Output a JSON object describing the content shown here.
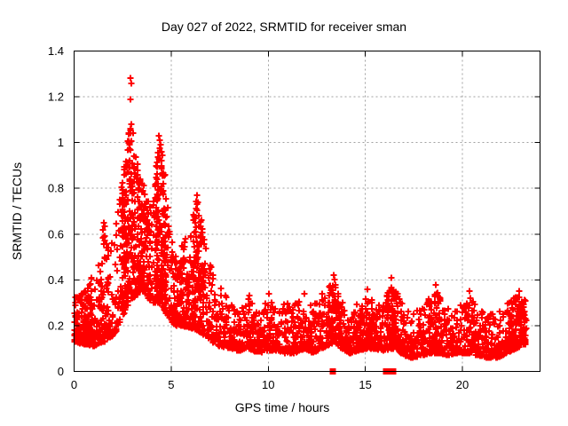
{
  "chart_data": {
    "type": "scatter",
    "title": "Day 027 of 2022, SRMTID for receiver sman",
    "xlabel": "GPS time / hours",
    "ylabel": "SRMTID / TECUs",
    "xlim": [
      0,
      24
    ],
    "ylim": [
      0,
      1.4
    ],
    "xticks": [
      {
        "value": 0,
        "label": "0"
      },
      {
        "value": 5,
        "label": "5"
      },
      {
        "value": 10,
        "label": "10"
      },
      {
        "value": 15,
        "label": "15"
      },
      {
        "value": 20,
        "label": "20"
      }
    ],
    "yticks": [
      {
        "value": 0,
        "label": "0"
      },
      {
        "value": 0.2,
        "label": "0.2"
      },
      {
        "value": 0.4,
        "label": "0.4"
      },
      {
        "value": 0.6,
        "label": "0.6"
      },
      {
        "value": 0.8,
        "label": "0.8"
      },
      {
        "value": 1,
        "label": "1"
      },
      {
        "value": 1.2,
        "label": "1.2"
      },
      {
        "value": 1.4,
        "label": "1.4"
      }
    ],
    "grid": true,
    "grid_style": "dashed",
    "legend": "none",
    "marker": {
      "shape": "plus",
      "color": "#ff0000",
      "size": 7
    },
    "grid_color": "#a0a0a0",
    "axis_color": "#000000",
    "background_color": "#ffffff",
    "series_name": "SRMTID",
    "time_range": [
      0,
      23.3
    ],
    "n_points": 2300,
    "seed": 27,
    "value_bias_exponent": 2.1,
    "envelope": [
      [
        0.0,
        0.13,
        0.33
      ],
      [
        0.5,
        0.12,
        0.36
      ],
      [
        1.0,
        0.11,
        0.42
      ],
      [
        1.3,
        0.12,
        0.52
      ],
      [
        1.6,
        0.13,
        0.66
      ],
      [
        1.9,
        0.15,
        0.55
      ],
      [
        2.2,
        0.18,
        0.68
      ],
      [
        2.5,
        0.24,
        0.85
      ],
      [
        2.8,
        0.3,
        1.05
      ],
      [
        3.0,
        0.32,
        1.08
      ],
      [
        3.2,
        0.33,
        0.92
      ],
      [
        3.5,
        0.36,
        0.84
      ],
      [
        3.8,
        0.32,
        0.74
      ],
      [
        4.1,
        0.3,
        0.82
      ],
      [
        4.35,
        0.3,
        1.0
      ],
      [
        4.6,
        0.28,
        0.95
      ],
      [
        4.9,
        0.22,
        0.64
      ],
      [
        5.2,
        0.2,
        0.52
      ],
      [
        5.6,
        0.2,
        0.56
      ],
      [
        6.0,
        0.19,
        0.64
      ],
      [
        6.35,
        0.18,
        0.76
      ],
      [
        6.7,
        0.16,
        0.6
      ],
      [
        7.1,
        0.13,
        0.47
      ],
      [
        7.5,
        0.11,
        0.38
      ],
      [
        8.1,
        0.1,
        0.32
      ],
      [
        8.5,
        0.09,
        0.26
      ],
      [
        9.0,
        0.1,
        0.32
      ],
      [
        9.5,
        0.08,
        0.26
      ],
      [
        10.0,
        0.09,
        0.33
      ],
      [
        10.4,
        0.09,
        0.27
      ],
      [
        10.9,
        0.08,
        0.3
      ],
      [
        11.4,
        0.08,
        0.31
      ],
      [
        11.9,
        0.1,
        0.34
      ],
      [
        12.3,
        0.08,
        0.3
      ],
      [
        12.8,
        0.1,
        0.34
      ],
      [
        13.4,
        0.13,
        0.4
      ],
      [
        13.8,
        0.1,
        0.32
      ],
      [
        14.2,
        0.08,
        0.26
      ],
      [
        14.7,
        0.09,
        0.31
      ],
      [
        15.1,
        0.1,
        0.33
      ],
      [
        15.5,
        0.1,
        0.31
      ],
      [
        15.9,
        0.09,
        0.3
      ],
      [
        16.3,
        0.1,
        0.38
      ],
      [
        16.6,
        0.1,
        0.36
      ],
      [
        17.0,
        0.07,
        0.3
      ],
      [
        17.4,
        0.06,
        0.25
      ],
      [
        17.9,
        0.07,
        0.28
      ],
      [
        18.4,
        0.08,
        0.34
      ],
      [
        18.8,
        0.08,
        0.36
      ],
      [
        19.3,
        0.07,
        0.27
      ],
      [
        19.8,
        0.08,
        0.28
      ],
      [
        20.3,
        0.08,
        0.34
      ],
      [
        20.8,
        0.07,
        0.28
      ],
      [
        21.3,
        0.06,
        0.25
      ],
      [
        21.8,
        0.06,
        0.27
      ],
      [
        22.3,
        0.08,
        0.3
      ],
      [
        22.8,
        0.1,
        0.34
      ],
      [
        23.1,
        0.12,
        0.35
      ],
      [
        23.3,
        0.12,
        0.3
      ]
    ],
    "extra_clusters": [
      {
        "range": [
          2.45,
          3.15
        ],
        "count": 150,
        "exponent": 1.0
      },
      {
        "range": [
          4.15,
          4.75
        ],
        "count": 130,
        "exponent": 1.0
      },
      {
        "range": [
          3.2,
          3.9
        ],
        "count": 90,
        "exponent": 1.1
      },
      {
        "range": [
          6.1,
          6.7
        ],
        "count": 90,
        "exponent": 1.1
      },
      {
        "range": [
          0.0,
          1.0
        ],
        "count": 130,
        "exponent": 2.2
      },
      {
        "range": [
          1.3,
          1.8
        ],
        "count": 40,
        "exponent": 1.6
      },
      {
        "range": [
          5.0,
          6.0
        ],
        "count": 80,
        "exponent": 1.6
      },
      {
        "range": [
          13.1,
          13.7
        ],
        "count": 50,
        "exponent": 1.4
      },
      {
        "range": [
          16.1,
          16.7
        ],
        "count": 70,
        "exponent": 1.4
      },
      {
        "range": [
          18.3,
          18.9
        ],
        "count": 40,
        "exponent": 1.6
      },
      {
        "range": [
          14.5,
          15.6
        ],
        "count": 60,
        "exponent": 1.8
      },
      {
        "range": [
          22.4,
          23.25
        ],
        "count": 70,
        "exponent": 1.6
      }
    ],
    "outliers": [
      [
        2.88,
        1.28
      ],
      [
        2.93,
        1.26
      ],
      [
        2.9,
        1.19
      ],
      [
        2.95,
        1.08
      ],
      [
        3.02,
        1.04
      ],
      [
        2.85,
        0.99
      ],
      [
        4.35,
        1.03
      ],
      [
        4.4,
        1.01
      ],
      [
        4.44,
        0.99
      ],
      [
        4.48,
        0.96
      ],
      [
        4.38,
        0.93
      ],
      [
        6.33,
        0.77
      ],
      [
        6.38,
        0.74
      ],
      [
        6.3,
        0.71
      ],
      [
        6.55,
        0.66
      ],
      [
        1.52,
        0.65
      ],
      [
        1.48,
        0.62
      ],
      [
        1.56,
        0.59
      ],
      [
        1.44,
        0.47
      ],
      [
        13.38,
        0.42
      ],
      [
        13.42,
        0.4
      ],
      [
        16.32,
        0.41
      ],
      [
        15.12,
        0.36
      ],
      [
        18.62,
        0.38
      ],
      [
        20.35,
        0.35
      ],
      [
        11.88,
        0.34
      ],
      [
        22.92,
        0.35
      ],
      [
        10.02,
        0.34
      ],
      [
        9.02,
        0.33
      ],
      [
        12.78,
        0.34
      ]
    ],
    "zero_markers": [
      13.32,
      16.08,
      16.35,
      16.45
    ]
  }
}
